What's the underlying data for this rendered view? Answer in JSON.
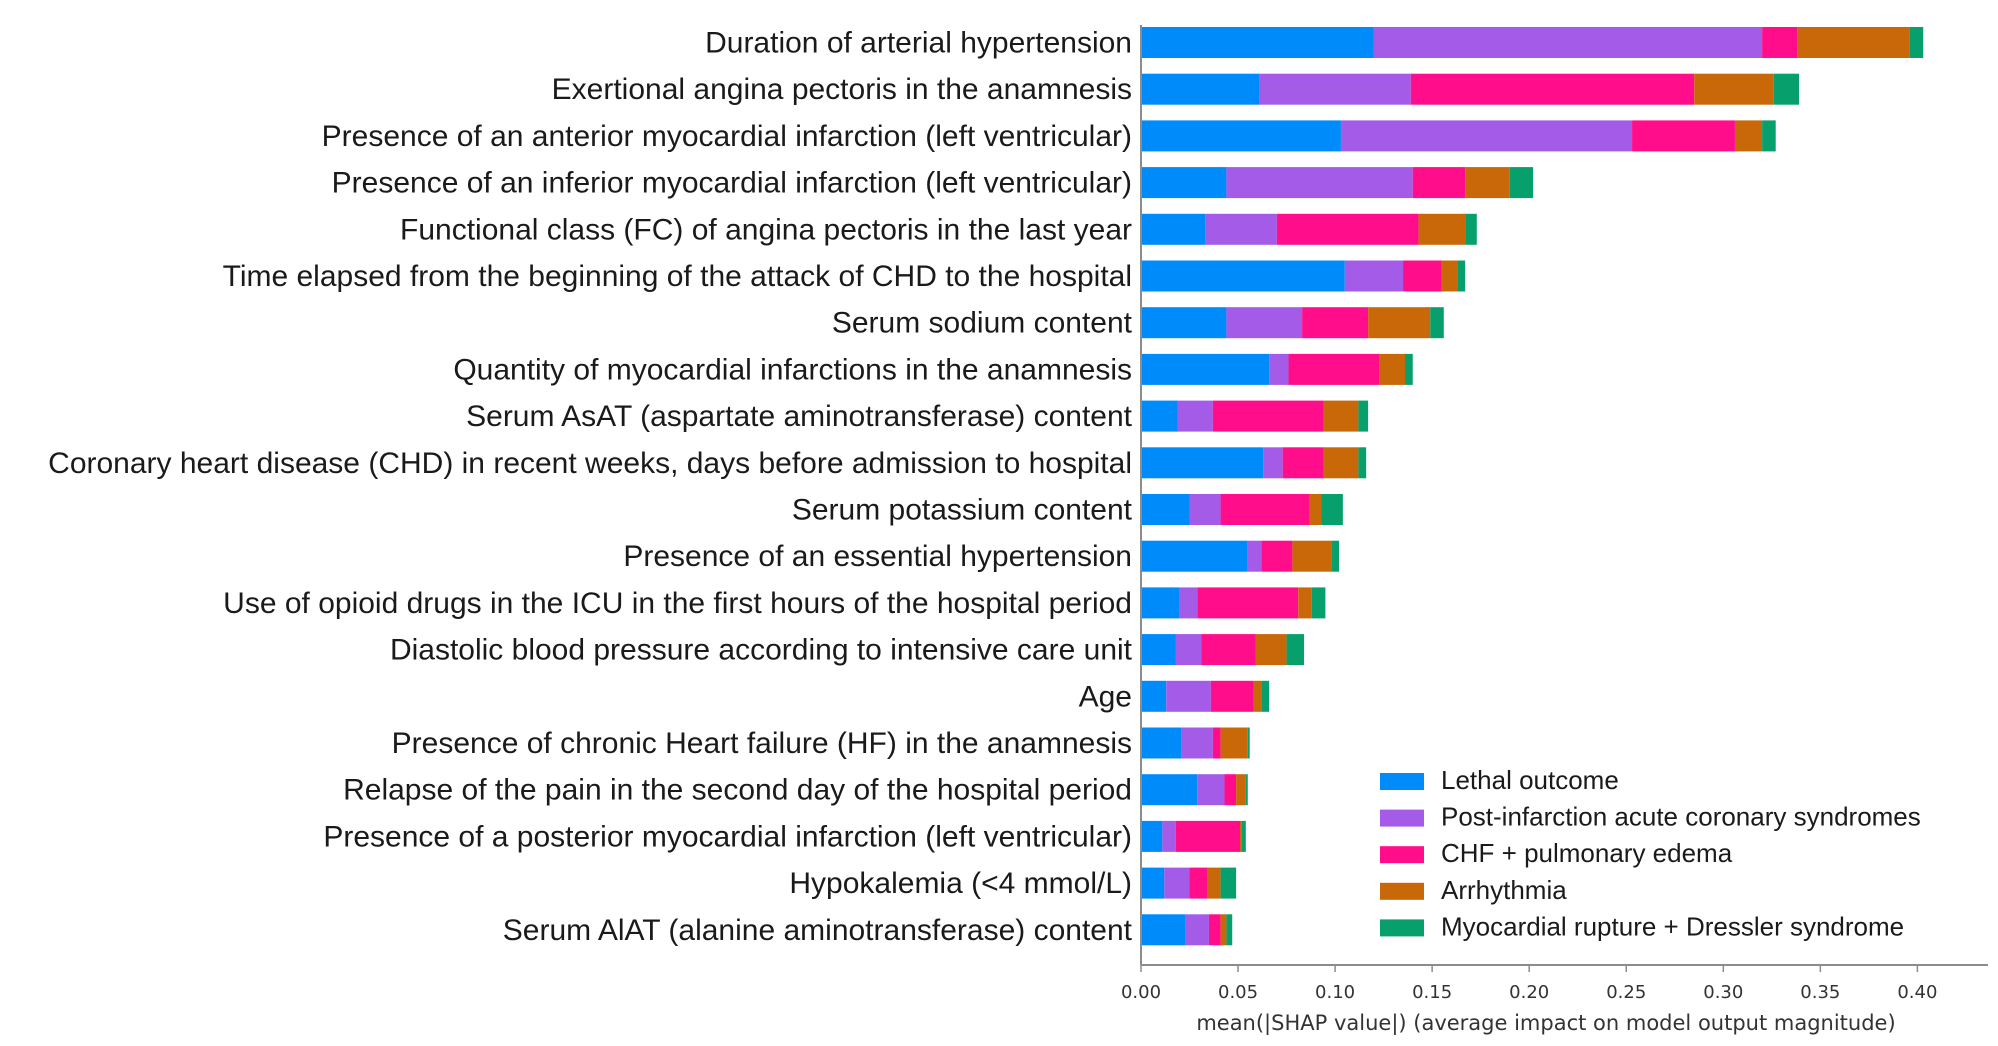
{
  "chart_data": {
    "type": "bar",
    "orientation": "horizontal",
    "stacked": true,
    "xlabel": "mean(|SHAP value|) (average impact on model output magnitude)",
    "xlim": [
      0,
      0.42
    ],
    "x_ticks": [
      "0.00",
      "0.05",
      "0.10",
      "0.15",
      "0.20",
      "0.25",
      "0.30",
      "0.35",
      "0.40"
    ],
    "grid": false,
    "legend_position": "bottom-right",
    "categories": [
      "Duration of arterial hypertension",
      "Exertional angina pectoris in the anamnesis",
      "Presence of an anterior myocardial infarction (left ventricular)",
      "Presence of an inferior myocardial infarction (left ventricular)",
      "Functional class (FC) of angina pectoris in the last year",
      "Time elapsed from the beginning of the attack of CHD to the hospital",
      "Serum sodium content",
      "Quantity of myocardial infarctions in the anamnesis",
      "Serum AsAT (aspartate aminotransferase) content",
      "Coronary heart disease (CHD) in recent weeks, days before admission to hospital",
      "Serum potassium content",
      "Presence of an essential hypertension",
      "Use of opioid drugs in the ICU in the first hours of the hospital period",
      "Diastolic blood pressure according to intensive care unit",
      "Age",
      "Presence of chronic Heart failure (HF) in the anamnesis",
      "Relapse of the pain in the second day of the hospital period",
      "Presence of a posterior myocardial infarction (left ventricular)",
      "Hypokalemia (<4 mmol/L)",
      "Serum AlAT (alanine aminotransferase) content"
    ],
    "series": [
      {
        "name": "Lethal outcome",
        "color": "#008bfb",
        "values": [
          0.12,
          0.061,
          0.103,
          0.044,
          0.033,
          0.105,
          0.044,
          0.066,
          0.019,
          0.063,
          0.025,
          0.055,
          0.02,
          0.018,
          0.013,
          0.021,
          0.029,
          0.011,
          0.012,
          0.023
        ]
      },
      {
        "name": "Post-infarction acute coronary syndromes",
        "color": "#a45ce8",
        "values": [
          0.2,
          0.078,
          0.15,
          0.096,
          0.037,
          0.03,
          0.039,
          0.01,
          0.018,
          0.01,
          0.016,
          0.007,
          0.009,
          0.013,
          0.023,
          0.016,
          0.014,
          0.007,
          0.013,
          0.012
        ]
      },
      {
        "name": "CHF + pulmonary edema",
        "color": "#ff0d8b",
        "values": [
          0.018,
          0.146,
          0.053,
          0.027,
          0.073,
          0.02,
          0.034,
          0.047,
          0.057,
          0.021,
          0.046,
          0.016,
          0.052,
          0.028,
          0.022,
          0.004,
          0.006,
          0.033,
          0.009,
          0.006
        ]
      },
      {
        "name": "Arrhythmia",
        "color": "#c86809",
        "values": [
          0.058,
          0.041,
          0.014,
          0.023,
          0.024,
          0.008,
          0.032,
          0.013,
          0.018,
          0.018,
          0.006,
          0.02,
          0.007,
          0.016,
          0.004,
          0.014,
          0.005,
          0.001,
          0.007,
          0.003
        ]
      },
      {
        "name": "Myocardial rupture + Dressler syndrome",
        "color": "#079f6c",
        "values": [
          0.007,
          0.013,
          0.007,
          0.012,
          0.006,
          0.004,
          0.007,
          0.004,
          0.005,
          0.004,
          0.011,
          0.004,
          0.007,
          0.009,
          0.004,
          0.001,
          0.001,
          0.002,
          0.008,
          0.003
        ]
      }
    ]
  }
}
